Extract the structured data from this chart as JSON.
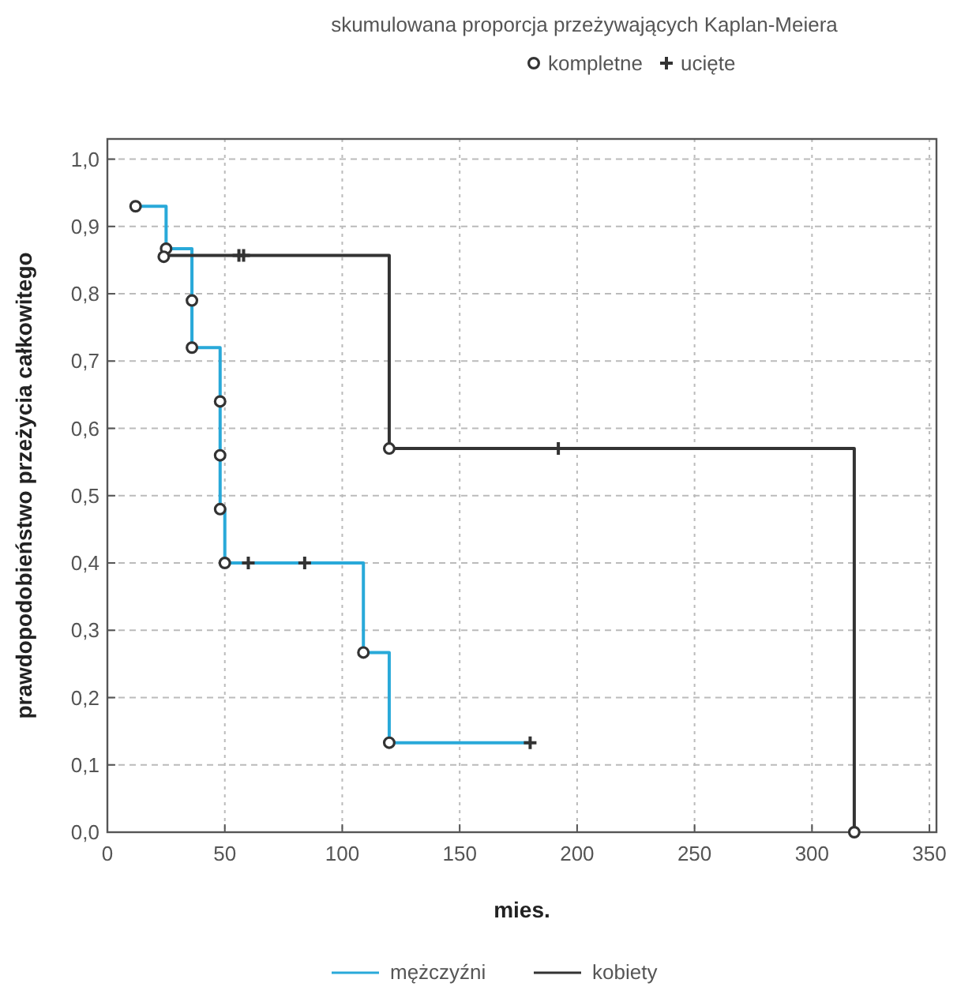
{
  "chart_data": {
    "type": "step",
    "title": "skumulowana proporcja przeżywających Kaplan-Meiera",
    "xlabel": "mies.",
    "ylabel": "prawdopodobieństwo przeżycia całkowitego",
    "xlim": [
      0,
      353
    ],
    "xticks": [
      0,
      50,
      100,
      150,
      200,
      250,
      300,
      350
    ],
    "ylim": [
      0,
      1.03
    ],
    "yticks": [
      {
        "value": 0,
        "label": "0,0"
      },
      {
        "value": 0.1,
        "label": "0,1"
      },
      {
        "value": 0.2,
        "label": "0,2"
      },
      {
        "value": 0.3,
        "label": "0,3"
      },
      {
        "value": 0.4,
        "label": "0,4"
      },
      {
        "value": 0.5,
        "label": "0,5"
      },
      {
        "value": 0.6,
        "label": "0,6"
      },
      {
        "value": 0.7,
        "label": "0,7"
      },
      {
        "value": 0.8,
        "label": "0,8"
      },
      {
        "value": 0.9,
        "label": "0,9"
      },
      {
        "value": 1.0,
        "label": "1,0"
      }
    ],
    "grid": true,
    "legend": "bottom",
    "line_style": "solid",
    "series": [
      {
        "name": "mężczyźni",
        "color": "#29a9d9",
        "x": [
          12,
          25,
          36,
          48,
          50,
          109,
          120,
          180
        ],
        "values": [
          0.93,
          0.867,
          0.72,
          0.48,
          0.4,
          0.267,
          0.133,
          0.133
        ]
      },
      {
        "name": "kobiety",
        "color": "#333333",
        "x": [
          24,
          120,
          318
        ],
        "values": [
          0.857,
          0.57,
          0
        ]
      },
      {
        "name": "kompletne",
        "type": "scatter",
        "marker": "circle",
        "color": "#333333",
        "x": [
          12,
          25,
          36,
          36,
          48,
          48,
          48,
          50,
          109,
          120,
          24,
          120,
          318
        ],
        "values": [
          0.93,
          0.867,
          0.79,
          0.72,
          0.64,
          0.56,
          0.48,
          0.4,
          0.267,
          0.133,
          0.855,
          0.57,
          0
        ]
      },
      {
        "name": "ucięte",
        "type": "scatter",
        "marker": "cross",
        "color": "#333333",
        "x": [
          60,
          84,
          180,
          56,
          58,
          192
        ],
        "values": [
          0.4,
          0.4,
          0.133,
          0.857,
          0.857,
          0.57
        ]
      }
    ]
  }
}
